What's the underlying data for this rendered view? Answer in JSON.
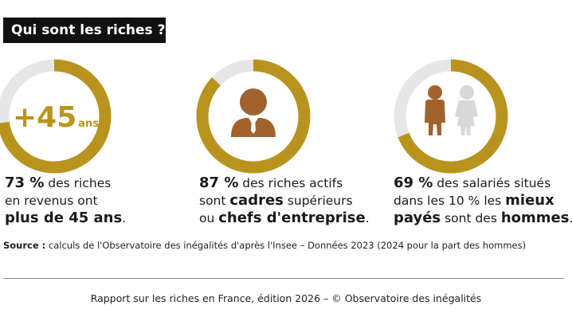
{
  "title": "Qui sont les riches ?",
  "colors": {
    "accent": "#b8941f",
    "track": "#e6e6e6",
    "figure": "#a0632e",
    "figure_light": "#d8d8d8",
    "title_bg": "#111111"
  },
  "chart_data": [
    {
      "type": "pie",
      "value": 73,
      "unit": "%",
      "icon": "age-45-plus",
      "icon_text": {
        "number": "+45",
        "unit": "ans"
      },
      "caption": {
        "pct": "73 %",
        "line1_rest": " des riches",
        "line2": "en revenus ont",
        "line3_bold": "plus de 45 ans",
        "line3_end": "."
      }
    },
    {
      "type": "pie",
      "value": 87,
      "unit": "%",
      "icon": "executive-icon",
      "caption": {
        "pct": "87 %",
        "line1_rest": " des riches actifs",
        "line2_a": "sont ",
        "line2_bold": "cadres",
        "line2_b": " supérieurs",
        "line3_a": "ou ",
        "line3_bold": "chefs d'entreprise",
        "line3_end": "."
      }
    },
    {
      "type": "pie",
      "value": 69,
      "unit": "%",
      "icon": "man-woman-icon",
      "caption": {
        "pct": "69 %",
        "line1_rest": " des salariés situés",
        "line2_a": "dans les 10 % les ",
        "line2_bold": "mieux",
        "line3_bold1": "payés",
        "line3_a": " sont des ",
        "line3_bold2": "hommes",
        "line3_end": "."
      }
    }
  ],
  "source": {
    "label": "Source :",
    "text": " calculs de l'Observatoire des inégalités d'après l'Insee – Données 2023 (2024 pour la part des hommes)"
  },
  "footer": "Rapport sur les riches en France, édition 2026 – © Observatoire des inégalités"
}
